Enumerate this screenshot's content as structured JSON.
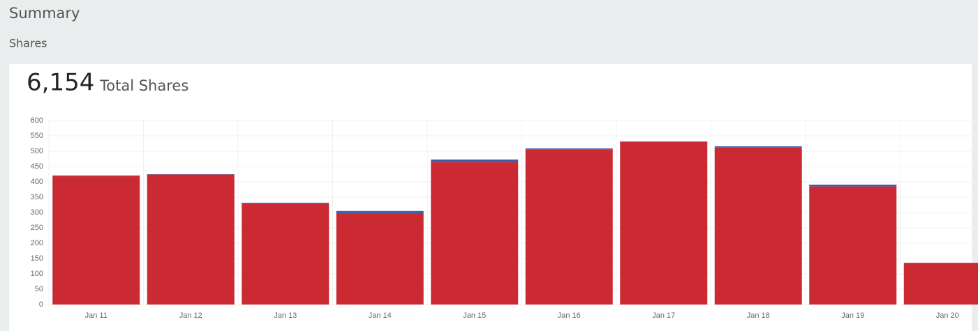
{
  "header": {
    "title": "Summary",
    "section": "Shares"
  },
  "summary": {
    "total": "6,154",
    "total_caption": "Total Shares"
  },
  "chart_data": {
    "type": "stacked-bar",
    "categories": [
      "Jan 11",
      "Jan 12",
      "Jan 13",
      "Jan 14",
      "Jan 15",
      "Jan 16",
      "Jan 17",
      "Jan 18",
      "Jan 19",
      "Jan 20"
    ],
    "series": [
      {
        "color": "#cc2a33",
        "values": [
          420,
          424,
          328,
          298,
          465,
          506,
          530,
          513,
          385,
          136
        ]
      },
      {
        "color": "#3f5ea8",
        "values": [
          1,
          1,
          4,
          7,
          8,
          3,
          2,
          3,
          6,
          0
        ]
      }
    ],
    "ylim": [
      0,
      600
    ],
    "yticks": [
      0,
      50,
      100,
      150,
      200,
      250,
      300,
      350,
      400,
      450,
      500,
      550,
      600
    ],
    "grid": true
  }
}
